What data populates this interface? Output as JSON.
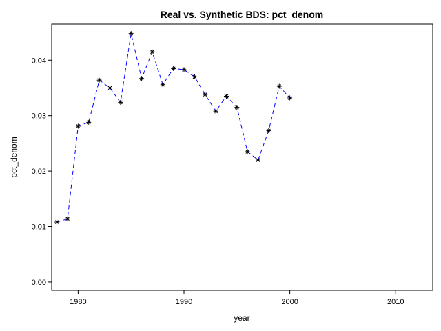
{
  "chart_data": {
    "type": "line",
    "title": "Real vs. Synthetic BDS: pct_denom",
    "xlabel": "year",
    "ylabel": "pct_denom",
    "xlim": [
      1977.5,
      2013.5
    ],
    "ylim": [
      -0.0015,
      0.0465
    ],
    "xticks": [
      1980,
      1990,
      2000,
      2010
    ],
    "yticks": [
      0.0,
      0.01,
      0.02,
      0.03,
      0.04
    ],
    "ytick_labels": [
      "0.00",
      "0.01",
      "0.02",
      "0.03",
      "0.04"
    ],
    "grid": false,
    "series": [
      {
        "color": "#0000ff",
        "line_style": "dashed",
        "marker": "asterisk",
        "marker_color": "#000000",
        "x": [
          1978,
          1979,
          1980,
          1981,
          1982,
          1983,
          1984,
          1985,
          1986,
          1987,
          1988,
          1989,
          1990,
          1991,
          1992,
          1993,
          1994,
          1995,
          1996,
          1997,
          1998,
          1999,
          2000
        ],
        "y": [
          0.0108,
          0.0114,
          0.0281,
          0.0288,
          0.0364,
          0.035,
          0.0324,
          0.0448,
          0.0367,
          0.0415,
          0.0356,
          0.0385,
          0.0383,
          0.037,
          0.0338,
          0.0308,
          0.0335,
          0.0315,
          0.0235,
          0.022,
          0.0273,
          0.0353,
          0.0332
        ]
      }
    ]
  }
}
